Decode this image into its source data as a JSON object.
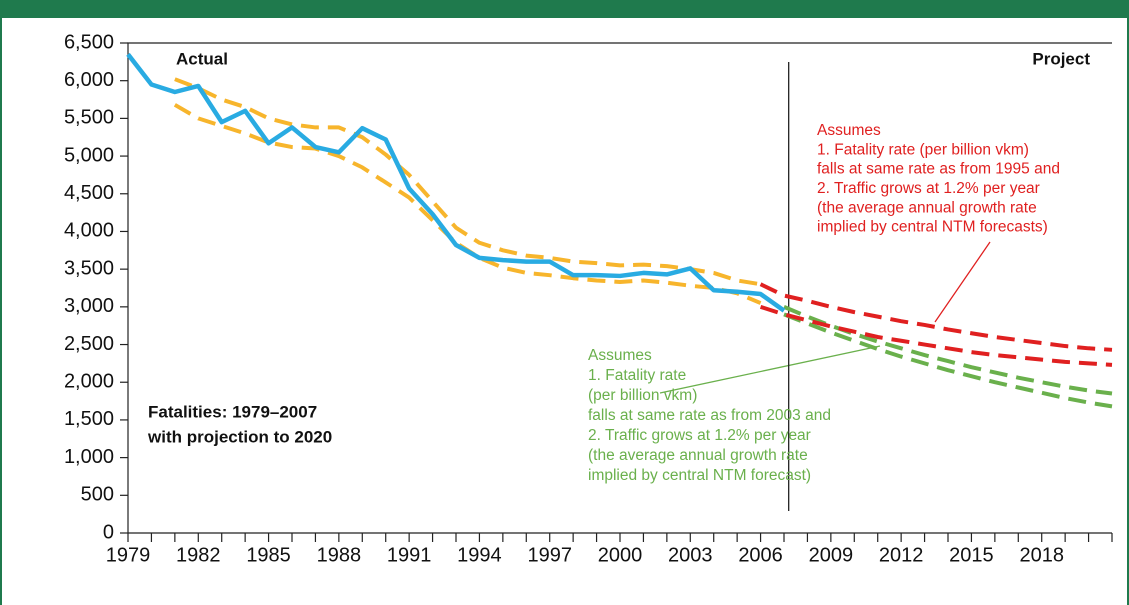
{
  "chart_data": {
    "type": "line",
    "title": [
      "Fatalities: 1979–2007",
      "with projection to 2020"
    ],
    "annotations": {
      "actual": "Actual",
      "project": "Project",
      "red_note": [
        "Assumes",
        "1. Fatality rate (per billion vkm)",
        "falls at same rate as from 1995 and",
        "2. Traffic grows at 1.2% per year",
        "(the average annual growth rate",
        "implied by central NTM forecasts)"
      ],
      "green_note": [
        "Assumes",
        "1. Fatality rate",
        "(per billion vkm)",
        "falls at same rate as from 2003 and",
        "2. Traffic grows at 1.2% per year",
        "(the average annual growth rate",
        "implied by central NTM forecast)"
      ]
    },
    "xlim": [
      1979,
      2021
    ],
    "xticks": [
      1979,
      1982,
      1985,
      1988,
      1991,
      1994,
      1997,
      2000,
      2003,
      2006,
      2009,
      2012,
      2015,
      2018
    ],
    "xminor_ticks": [
      1979,
      1980,
      1981,
      1982,
      1983,
      1984,
      1985,
      1986,
      1987,
      1988,
      1989,
      1990,
      1991,
      1992,
      1993,
      1994,
      1995,
      1996,
      1997,
      1998,
      1999,
      2000,
      2001,
      2002,
      2003,
      2004,
      2005,
      2006,
      2007,
      2008,
      2009,
      2010,
      2011,
      2012,
      2013,
      2014,
      2015,
      2016,
      2017,
      2018,
      2019,
      2020,
      2021
    ],
    "ylim": [
      0,
      6500
    ],
    "yticks": [
      0,
      500,
      {
        "value": 1000,
        "label": "1,000"
      },
      {
        "value": 1500,
        "label": "1,500"
      },
      {
        "value": 2000,
        "label": "2,000"
      },
      {
        "value": 2500,
        "label": "2,500"
      },
      {
        "value": 3000,
        "label": "3,000"
      },
      {
        "value": 3500,
        "label": "3,500"
      },
      {
        "value": 4000,
        "label": "4,000"
      },
      {
        "value": 4500,
        "label": "4,500"
      },
      {
        "value": 5000,
        "label": "5,000"
      },
      {
        "value": 5500,
        "label": "5,500"
      },
      {
        "value": 6000,
        "label": "6,000"
      },
      {
        "value": 6500,
        "label": "6,500"
      }
    ],
    "divider_x": 2007.2,
    "series": [
      {
        "color": "#f7b52c",
        "dashed": true,
        "x": [
          1981,
          1982,
          1983,
          1984,
          1985,
          1986,
          1987,
          1988,
          1989,
          1990,
          1991,
          1992,
          1993,
          1994,
          1995,
          1996,
          1997,
          1998,
          1999,
          2000,
          2001,
          2002,
          2003,
          2004,
          2005,
          2006
        ],
        "values": [
          6020,
          5900,
          5750,
          5650,
          5500,
          5420,
          5380,
          5380,
          5250,
          5020,
          4750,
          4400,
          4050,
          3850,
          3750,
          3680,
          3650,
          3600,
          3580,
          3550,
          3560,
          3540,
          3500,
          3450,
          3350,
          3300
        ]
      },
      {
        "color": "#f7b52c",
        "dashed": true,
        "x": [
          1981,
          1982,
          1983,
          1984,
          1985,
          1986,
          1987,
          1988,
          1989,
          1990,
          1991,
          1992,
          1993,
          1994,
          1995,
          1996,
          1997,
          1998,
          1999,
          2000,
          2001,
          2002,
          2003,
          2004,
          2005,
          2006
        ],
        "values": [
          5680,
          5500,
          5400,
          5300,
          5180,
          5120,
          5100,
          5000,
          4850,
          4650,
          4450,
          4150,
          3850,
          3650,
          3520,
          3450,
          3420,
          3380,
          3350,
          3330,
          3350,
          3320,
          3280,
          3250,
          3180,
          3050
        ]
      },
      {
        "color": "#6ab04c",
        "dashed": true,
        "x": [
          2007,
          2008,
          2009,
          2010,
          2011,
          2012,
          2013,
          2014,
          2015,
          2016,
          2017,
          2018,
          2019,
          2020,
          2021
        ],
        "values": [
          3000,
          2870,
          2750,
          2640,
          2540,
          2450,
          2360,
          2280,
          2200,
          2130,
          2060,
          2000,
          1940,
          1890,
          1850
        ]
      },
      {
        "color": "#6ab04c",
        "dashed": true,
        "x": [
          2007,
          2008,
          2009,
          2010,
          2011,
          2012,
          2013,
          2014,
          2015,
          2016,
          2017,
          2018,
          2019,
          2020,
          2021
        ],
        "values": [
          2900,
          2780,
          2660,
          2550,
          2440,
          2340,
          2250,
          2160,
          2080,
          2000,
          1930,
          1860,
          1790,
          1730,
          1680
        ]
      },
      {
        "color": "#e02020",
        "dashed": true,
        "x": [
          2006,
          2007,
          2008,
          2009,
          2010,
          2011,
          2012,
          2013,
          2014,
          2015,
          2016,
          2017,
          2018,
          2019,
          2020,
          2021
        ],
        "values": [
          3300,
          3150,
          3080,
          3000,
          2930,
          2870,
          2810,
          2760,
          2700,
          2650,
          2600,
          2560,
          2520,
          2480,
          2450,
          2430
        ]
      },
      {
        "color": "#e02020",
        "dashed": true,
        "x": [
          2006,
          2007,
          2008,
          2009,
          2010,
          2011,
          2012,
          2013,
          2014,
          2015,
          2016,
          2017,
          2018,
          2019,
          2020,
          2021
        ],
        "values": [
          3000,
          2900,
          2820,
          2740,
          2670,
          2600,
          2550,
          2500,
          2450,
          2400,
          2360,
          2330,
          2300,
          2270,
          2250,
          2230
        ]
      },
      {
        "color": "#29abe2",
        "dashed": false,
        "x": [
          1979,
          1980,
          1981,
          1982,
          1983,
          1984,
          1985,
          1986,
          1987,
          1988,
          1989,
          1990,
          1991,
          1992,
          1993,
          1994,
          1995,
          1996,
          1997,
          1998,
          1999,
          2000,
          2001,
          2002,
          2003,
          2004,
          2005,
          2006,
          2007
        ],
        "values": [
          6350,
          5950,
          5850,
          5930,
          5450,
          5600,
          5170,
          5380,
          5120,
          5050,
          5370,
          5220,
          4570,
          4230,
          3820,
          3650,
          3620,
          3600,
          3600,
          3420,
          3420,
          3410,
          3450,
          3430,
          3510,
          3220,
          3200,
          3170,
          2950
        ]
      }
    ]
  }
}
